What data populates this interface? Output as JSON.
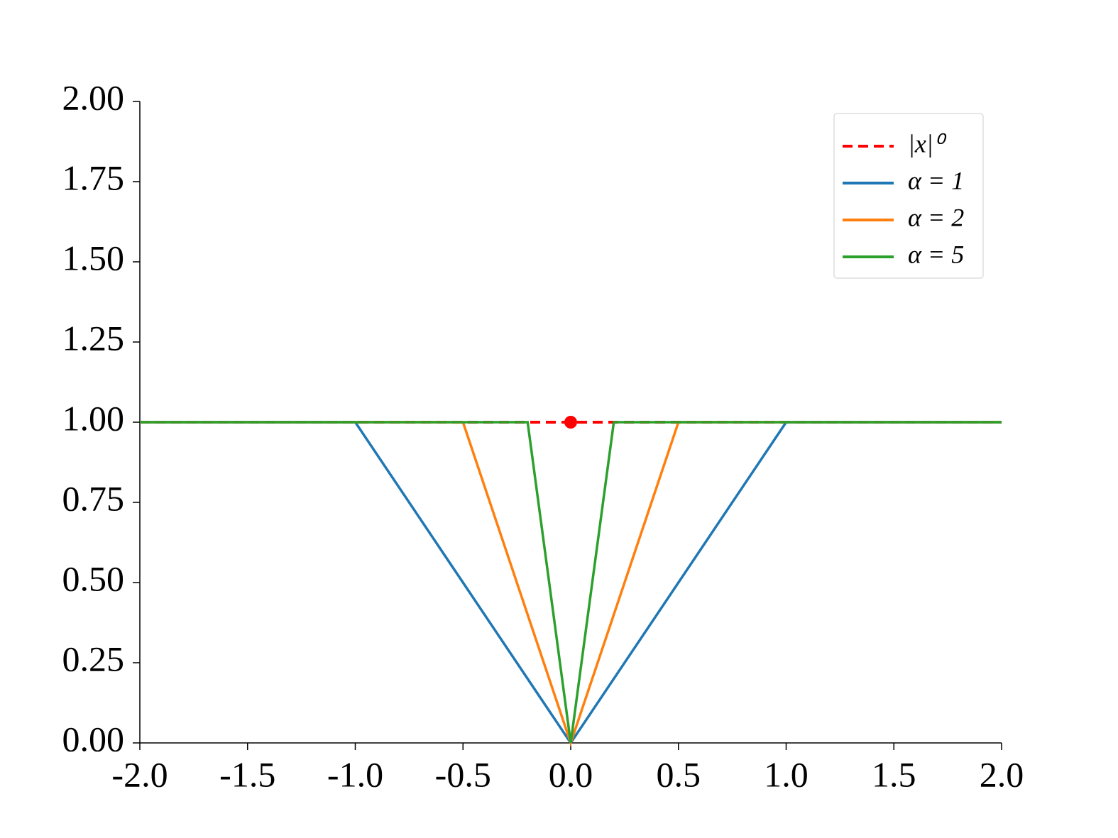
{
  "chart_data": {
    "type": "line",
    "xlim": [
      -2,
      2
    ],
    "ylim": [
      0,
      2
    ],
    "xticks": [
      {
        "value": -2,
        "label": "-2.0"
      },
      {
        "value": -1.5,
        "label": "-1.5"
      },
      {
        "value": -1,
        "label": "-1.0"
      },
      {
        "value": -0.5,
        "label": "-0.5"
      },
      {
        "value": 0,
        "label": "0.0"
      },
      {
        "value": 0.5,
        "label": "0.5"
      },
      {
        "value": 1,
        "label": "1.0"
      },
      {
        "value": 1.5,
        "label": "1.5"
      },
      {
        "value": 2,
        "label": "2.0"
      }
    ],
    "yticks": [
      {
        "value": 0,
        "label": "0.00"
      },
      {
        "value": 0.25,
        "label": "0.25"
      },
      {
        "value": 0.5,
        "label": "0.50"
      },
      {
        "value": 0.75,
        "label": "0.75"
      },
      {
        "value": 1,
        "label": "1.00"
      },
      {
        "value": 1.25,
        "label": "1.25"
      },
      {
        "value": 1.5,
        "label": "1.50"
      },
      {
        "value": 1.75,
        "label": "1.75"
      },
      {
        "value": 2,
        "label": "2.00"
      }
    ],
    "legend": "upper right",
    "series": [
      {
        "name": "|x|⁰",
        "color": "#ff0000",
        "dash": true,
        "x": [
          -2,
          2
        ],
        "values": [
          1,
          1
        ],
        "marker_x": [
          0
        ],
        "marker_values": [
          1
        ]
      },
      {
        "name": "α = 1",
        "color": "#1f77b4",
        "x": [
          -2,
          -1,
          0,
          1,
          2
        ],
        "values": [
          1,
          1,
          0,
          1,
          1
        ]
      },
      {
        "name": "α = 2",
        "color": "#ff7f0e",
        "x": [
          -2,
          -0.5,
          0,
          0.5,
          2
        ],
        "values": [
          1,
          1,
          0,
          1,
          1
        ]
      },
      {
        "name": "α = 5",
        "color": "#2ca02c",
        "x": [
          -2,
          -0.2,
          0,
          0.2,
          2
        ],
        "values": [
          1,
          1,
          0,
          1,
          1
        ]
      }
    ]
  }
}
